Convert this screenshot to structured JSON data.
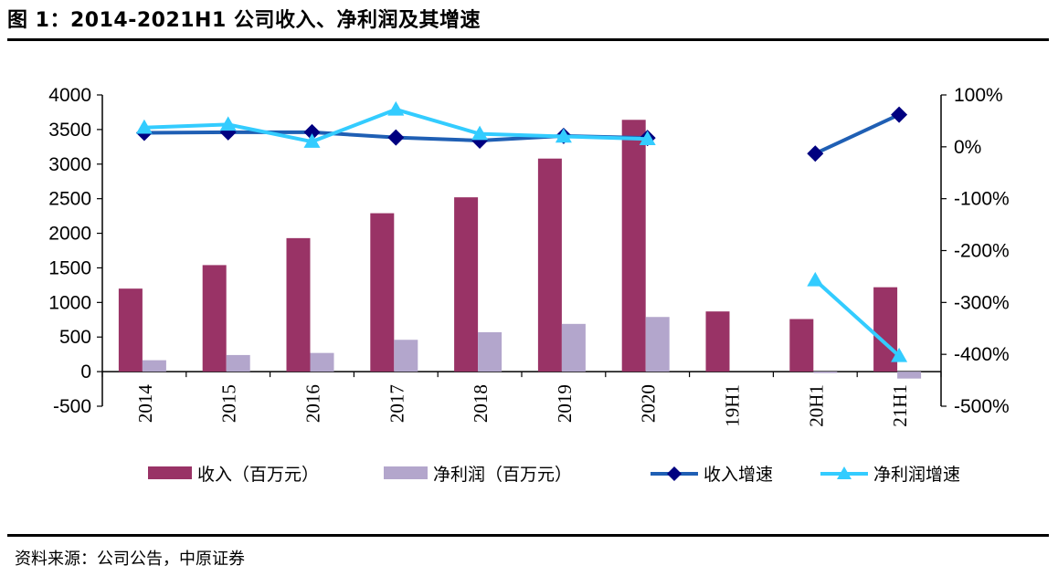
{
  "page": {
    "title": "图 1：2014-2021H1 公司收入、净利润及其增速",
    "source": "资料来源：公司公告，中原证券"
  },
  "chart_data": {
    "type": "bar",
    "categories": [
      "2014",
      "2015",
      "2016",
      "2017",
      "2018",
      "2019",
      "2020",
      "19H1",
      "20H1",
      "21H1"
    ],
    "y_left": {
      "ylim": [
        -500,
        4000
      ],
      "ticks": [
        "4000",
        "3500",
        "3000",
        "2500",
        "2000",
        "1500",
        "1000",
        "500",
        "0",
        "-500"
      ]
    },
    "y_right": {
      "ylim": [
        -500,
        100
      ],
      "ticks": [
        "100%",
        "0%",
        "-100%",
        "-200%",
        "-300%",
        "-400%",
        "-500%"
      ]
    },
    "series": [
      {
        "name": "收入（百万元）",
        "kind": "bar",
        "axis": "left",
        "color": "#993366",
        "values": [
          1200,
          1540,
          1930,
          2290,
          2520,
          3080,
          3640,
          870,
          760,
          1220
        ]
      },
      {
        "name": "净利润（百万元）",
        "kind": "bar",
        "axis": "left",
        "color": "#b3a6cc",
        "values": [
          165,
          240,
          270,
          460,
          570,
          690,
          790,
          null,
          -15,
          -100
        ]
      },
      {
        "name": "收入增速",
        "kind": "line",
        "axis": "right",
        "color": "#1f5fb4",
        "marker": "diamond",
        "segments": [
          {
            "x": [
              "2014",
              "2015",
              "2016",
              "2017",
              "2018",
              "2019",
              "2020"
            ],
            "values": [
              27,
              28,
              28,
              18,
              12,
              21,
              17
            ]
          },
          {
            "x": [
              "20H1",
              "21H1"
            ],
            "values": [
              -13,
              62
            ]
          }
        ]
      },
      {
        "name": "净利润增速",
        "kind": "line",
        "axis": "right",
        "color": "#33ccff",
        "marker": "triangle",
        "segments": [
          {
            "x": [
              "2014",
              "2015",
              "2016",
              "2017",
              "2018",
              "2019",
              "2020"
            ],
            "values": [
              37,
              43,
              10,
              72,
              25,
              20,
              15
            ]
          },
          {
            "x": [
              "20H1",
              "21H1"
            ],
            "values": [
              -257,
              -403
            ]
          }
        ]
      }
    ],
    "legend_position": "bottom"
  }
}
